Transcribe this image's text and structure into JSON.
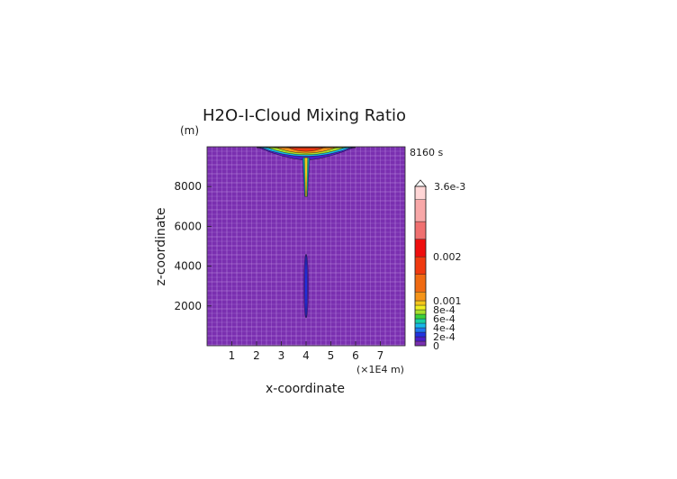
{
  "chart_data": {
    "type": "heatmap",
    "title": "H2O-I-Cloud Mixing Ratio",
    "ylabel": "z-coordinate",
    "y_unit": "(m)",
    "xlabel": "x-coordinate",
    "x_unit": "(×1E4 m)",
    "time_label": "8160 s",
    "xlim": [
      0,
      8.0
    ],
    "ylim": [
      0,
      10000
    ],
    "x_ticks": [
      "1",
      "2",
      "3",
      "4",
      "5",
      "6",
      "7"
    ],
    "x_tick_values": [
      1,
      2,
      3,
      4,
      5,
      6,
      7
    ],
    "y_ticks": [
      "2000",
      "4000",
      "6000",
      "8000"
    ],
    "y_tick_values": [
      2000,
      4000,
      6000,
      8000
    ],
    "background_color": "#7a2fb0",
    "grid": true,
    "colorbar": {
      "max_label": "3.6e-3",
      "tick_labels": [
        {
          "label": "0.002",
          "value": 0.002
        },
        {
          "label": "0.001",
          "value": 0.001
        },
        {
          "label": "8e-4",
          "value": 0.0008
        },
        {
          "label": "6e-4",
          "value": 0.0006
        },
        {
          "label": "4e-4",
          "value": 0.0004
        },
        {
          "label": "2e-4",
          "value": 0.0002
        },
        {
          "label": "0",
          "value": 0
        }
      ],
      "levels": [
        {
          "from": 0,
          "to": 0.0001,
          "color": "#7a2fb0"
        },
        {
          "from": 0.0001,
          "to": 0.0002,
          "color": "#4b1ec8"
        },
        {
          "from": 0.0002,
          "to": 0.0003,
          "color": "#2233e0"
        },
        {
          "from": 0.0003,
          "to": 0.0004,
          "color": "#1e78f0"
        },
        {
          "from": 0.0004,
          "to": 0.0005,
          "color": "#18b8e8"
        },
        {
          "from": 0.0005,
          "to": 0.0006,
          "color": "#19d0a0"
        },
        {
          "from": 0.0006,
          "to": 0.0007,
          "color": "#3ad23a"
        },
        {
          "from": 0.0007,
          "to": 0.0008,
          "color": "#a8e02a"
        },
        {
          "from": 0.0008,
          "to": 0.0009,
          "color": "#f0f020"
        },
        {
          "from": 0.0009,
          "to": 0.001,
          "color": "#f5c51a"
        },
        {
          "from": 0.001,
          "to": 0.0012,
          "color": "#f59418"
        },
        {
          "from": 0.0012,
          "to": 0.0016,
          "color": "#f06a12"
        },
        {
          "from": 0.0016,
          "to": 0.002,
          "color": "#f03a10"
        },
        {
          "from": 0.002,
          "to": 0.0024,
          "color": "#ee0e0e"
        },
        {
          "from": 0.0024,
          "to": 0.0028,
          "color": "#f07070"
        },
        {
          "from": 0.0028,
          "to": 0.0033,
          "color": "#f8a8a8"
        },
        {
          "from": 0.0033,
          "to": 0.0036,
          "color": "#ffd6d6"
        }
      ]
    },
    "features": {
      "anvil_top": {
        "x_range": [
          2.0,
          6.0
        ],
        "z_top": 10000,
        "z_bottom": 9450,
        "center_x": 4.0,
        "peak_value": 0.0016
      },
      "column_upper": {
        "x": 4.0,
        "z_range": [
          7500,
          9450
        ],
        "value": 0.0009
      },
      "column_lower": {
        "x": 4.0,
        "z_range": [
          1400,
          4600
        ],
        "value": 0.0002
      }
    }
  }
}
